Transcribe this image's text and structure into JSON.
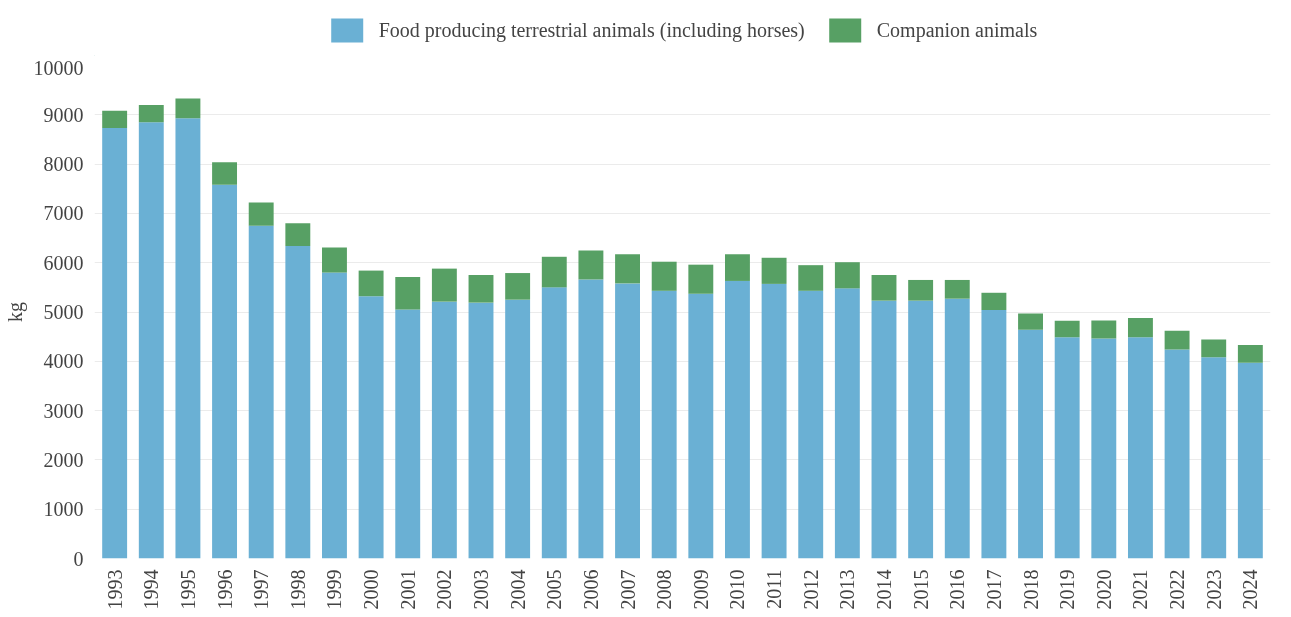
{
  "chart_data": {
    "type": "bar",
    "stacked": true,
    "ylabel": "kg",
    "categories": [
      "1993",
      "1994",
      "1995",
      "1996",
      "1997",
      "1998",
      "1999",
      "2000",
      "2001",
      "2002",
      "2003",
      "2004",
      "2005",
      "2006",
      "2007",
      "2008",
      "2009",
      "2010",
      "2011",
      "2012",
      "2013",
      "2014",
      "2015",
      "2016",
      "2017",
      "2018",
      "2019",
      "2020",
      "2021",
      "2022",
      "2023",
      "2024"
    ],
    "series": [
      {
        "name": "Food producing terrestrial animals (including horses)",
        "color": "#6ab0d4",
        "values": [
          8730,
          8850,
          8930,
          7580,
          6750,
          6340,
          5800,
          5320,
          5050,
          5210,
          5190,
          5250,
          5500,
          5660,
          5580,
          5430,
          5370,
          5630,
          5570,
          5430,
          5480,
          5230,
          5230,
          5270,
          5040,
          4640,
          4490,
          4460,
          4490,
          4240,
          4080,
          3970
        ]
      },
      {
        "name": "Companion animals",
        "color": "#57a064",
        "values": [
          350,
          350,
          400,
          460,
          470,
          460,
          510,
          520,
          660,
          670,
          560,
          540,
          620,
          590,
          590,
          590,
          590,
          540,
          530,
          520,
          530,
          520,
          420,
          380,
          350,
          330,
          330,
          370,
          390,
          380,
          360,
          360
        ]
      }
    ],
    "ylim": [
      0,
      10000
    ],
    "yticks": [
      0,
      1000,
      2000,
      3000,
      4000,
      5000,
      6000,
      7000,
      8000,
      9000,
      10000
    ],
    "grid": "y",
    "legend": "top"
  }
}
